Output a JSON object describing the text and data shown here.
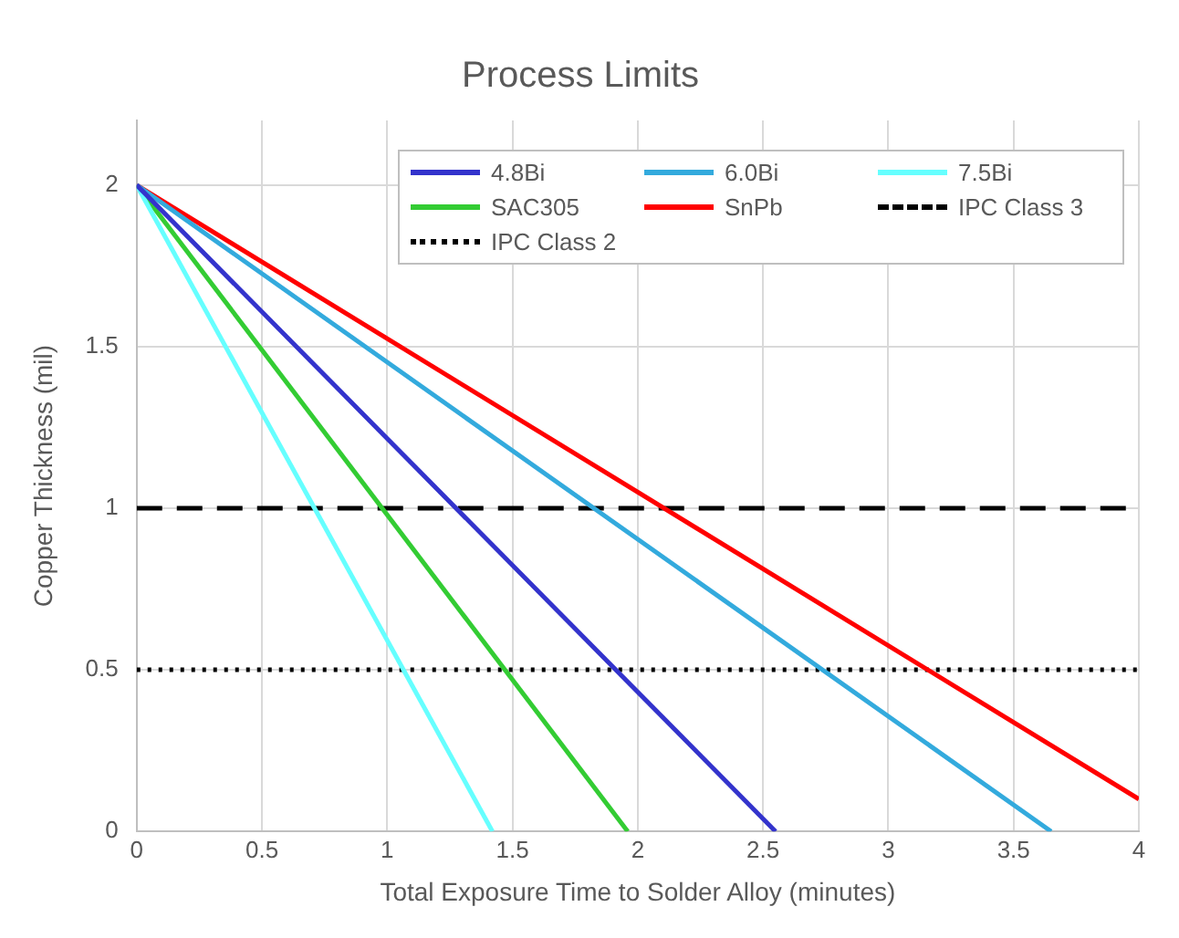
{
  "chart_data": {
    "type": "line",
    "title": "Process Limits",
    "xlabel": "Total Exposure Time to Solder Alloy (minutes)",
    "ylabel": "Copper Thickness (mil)",
    "xlim": [
      0,
      4
    ],
    "xticks": [
      0,
      0.5,
      1,
      1.5,
      2,
      2.5,
      3,
      3.5,
      4
    ],
    "ylim": [
      0,
      2.2
    ],
    "yticks": [
      0,
      0.5,
      1,
      1.5,
      2
    ],
    "grid": true,
    "legend": "top right",
    "marker": "none",
    "series": [
      {
        "name": "4.8Bi",
        "color": "#3333cc",
        "x": [
          0,
          2.55
        ],
        "values": [
          2,
          0
        ]
      },
      {
        "name": "6.0Bi",
        "color": "#33aadd",
        "x": [
          0,
          3.65
        ],
        "values": [
          2,
          0
        ]
      },
      {
        "name": "7.5Bi",
        "color": "#66ffff",
        "x": [
          0,
          1.42
        ],
        "values": [
          2,
          0
        ]
      },
      {
        "name": "SAC305",
        "color": "#33cc33",
        "x": [
          0,
          1.96
        ],
        "values": [
          2,
          0
        ]
      },
      {
        "name": "SnPb",
        "color": "#ff0000",
        "x": [
          0,
          4
        ],
        "values": [
          2,
          0.1
        ]
      },
      {
        "name": "IPC Class 3",
        "color": "#000000",
        "x": [
          0,
          4
        ],
        "values": [
          1,
          1
        ],
        "line_style": "dashed"
      },
      {
        "name": "IPC Class 2",
        "color": "#000000",
        "x": [
          0,
          4
        ],
        "values": [
          0.5,
          0.5
        ],
        "line_style": "dotted"
      }
    ]
  }
}
